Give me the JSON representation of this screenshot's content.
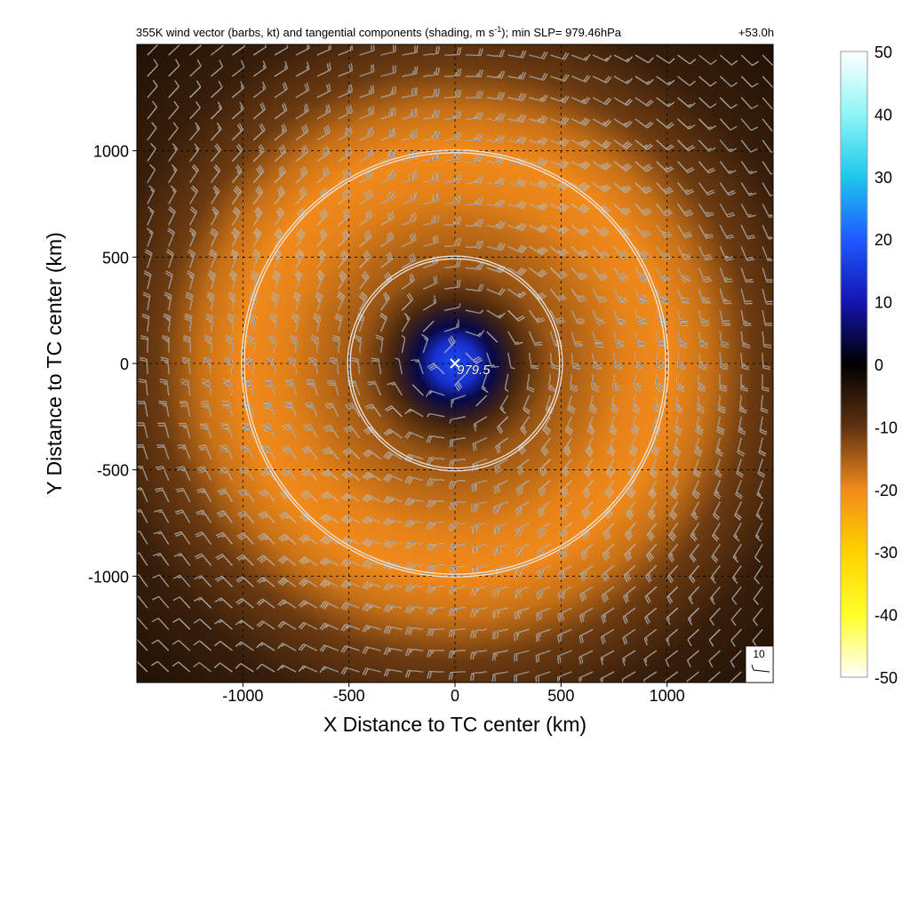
{
  "chart_data": {
    "type": "heatmap",
    "title": "355K wind vector (barbs, kt) and tangential components (shading, m s",
    "title_superscript": "-1",
    "title_suffix": "); min SLP= 979.46hPa",
    "valid_time": "+53.0h",
    "xlabel": "X Distance to TC center (km)",
    "ylabel": "Y Distance to TC center (km)",
    "xlim": [
      -1500,
      1500
    ],
    "ylim": [
      -1500,
      1500
    ],
    "x_ticks": [
      -1000,
      -500,
      0,
      500,
      1000
    ],
    "y_ticks": [
      -1000,
      -500,
      0,
      500,
      1000
    ],
    "x_tick_labels": [
      "-1000",
      "-500",
      "0",
      "500",
      "1000"
    ],
    "y_tick_labels": [
      "-1000",
      "-500",
      "0",
      "500",
      "1000"
    ],
    "grid": "dashed",
    "colorbar": {
      "range": [
        -50,
        50
      ],
      "ticks": [
        50,
        40,
        30,
        20,
        10,
        0,
        -10,
        -20,
        -30,
        -40,
        -50
      ],
      "tick_labels": [
        "50",
        "40",
        "30",
        "20",
        "10",
        "0",
        "-10",
        "-20",
        "-30",
        "-40",
        "-50"
      ],
      "stops": [
        {
          "value": 50,
          "color": "#ffffff"
        },
        {
          "value": 40,
          "color": "#8ff6f6"
        },
        {
          "value": 30,
          "color": "#1ec8ec"
        },
        {
          "value": 20,
          "color": "#1f5aff"
        },
        {
          "value": 10,
          "color": "#1414b0"
        },
        {
          "value": 0,
          "color": "#000000"
        },
        {
          "value": -10,
          "color": "#5e3210"
        },
        {
          "value": -20,
          "color": "#f28a1a"
        },
        {
          "value": -30,
          "color": "#ffd200"
        },
        {
          "value": -40,
          "color": "#ffff2a"
        },
        {
          "value": -50,
          "color": "#ffffff"
        }
      ]
    },
    "tangential_wind_profile": [
      {
        "r": 0,
        "value": 18
      },
      {
        "r": 100,
        "value": 14
      },
      {
        "r": 180,
        "value": 4
      },
      {
        "r": 300,
        "value": -8
      },
      {
        "r": 450,
        "value": -14
      },
      {
        "r": 600,
        "value": -16
      },
      {
        "r": 800,
        "value": -19
      },
      {
        "r": 1000,
        "value": -20
      },
      {
        "r": 1200,
        "value": -17
      },
      {
        "r": 1400,
        "value": -11
      },
      {
        "r": 1700,
        "value": -6
      },
      {
        "r": 2200,
        "value": -3
      }
    ],
    "range_circles_km": [
      500,
      1000
    ],
    "center": {
      "x": 0,
      "y": 0,
      "label": "979.5",
      "marker": "×"
    },
    "min_slp_hpa": 979.46,
    "barb_units": "kt",
    "barb_spacing_km": 100,
    "reference_barb": {
      "label": "10",
      "speed_kt": 10
    }
  }
}
